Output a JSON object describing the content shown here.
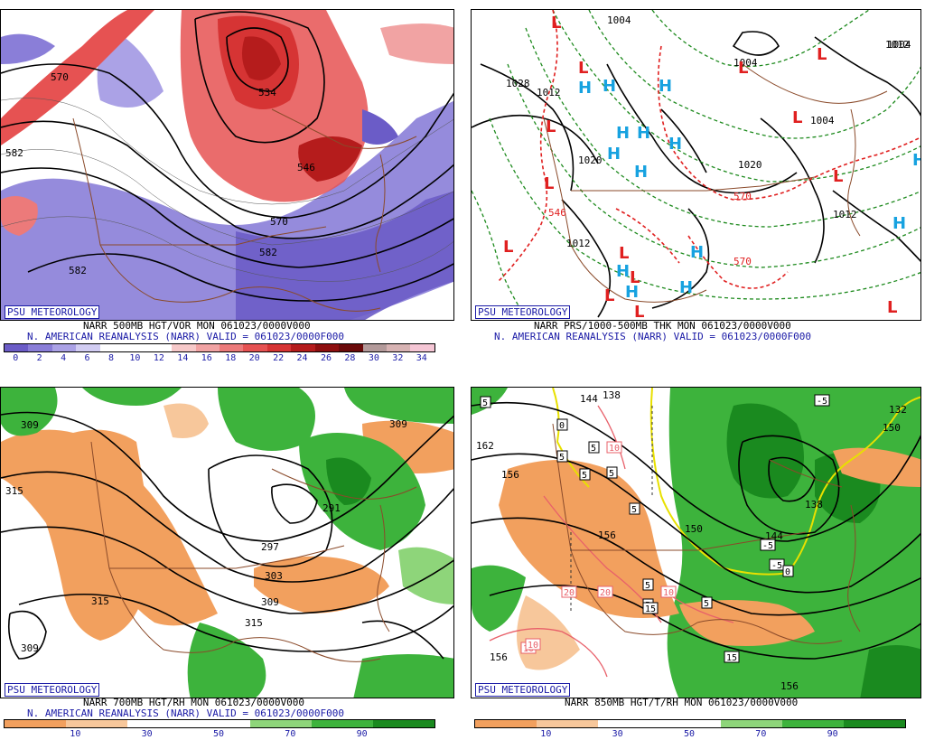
{
  "panels": {
    "p1": {
      "badge": "PSU METEOROLOGY",
      "line1": "NARR 500MB HGT/VOR MON 061023/0000V000",
      "line2": "N. AMERICAN REANALYSIS (NARR) VALID = 061023/0000F000",
      "ticks": [
        "0",
        "2",
        "4",
        "6",
        "8",
        "10",
        "12",
        "14",
        "16",
        "18",
        "20",
        "22",
        "24",
        "26",
        "28",
        "30",
        "32",
        "34"
      ],
      "colors": [
        "#6b5cc7",
        "#8a7ed8",
        "#aba2e6",
        "#d2cdf3",
        "#ffffff",
        "#ffffff",
        "#ffffff",
        "#f6c9c9",
        "#f1a3a3",
        "#ec7a7a",
        "#e65252",
        "#d63434",
        "#b51c1c",
        "#8e0f0f",
        "#6b0a0a",
        "#b39a9a",
        "#d7b3b3",
        "#f5c6d5"
      ],
      "contours": [
        "570",
        "534",
        "582",
        "546",
        "570",
        "582",
        "582"
      ]
    },
    "p2": {
      "badge": "PSU METEOROLOGY",
      "line1": "NARR PRS/1000-500MB THK MON 061023/0000V000",
      "line2": "N. AMERICAN REANALYSIS (NARR) VALID = 061023/0000F000",
      "contours": [
        "1004",
        "1028",
        "1012",
        "1020",
        "1020",
        "1004",
        "1012",
        "1012",
        "1004",
        "546",
        "570",
        "570",
        "1004",
        "1012"
      ],
      "highs": [
        "H",
        "H",
        "H",
        "H",
        "H",
        "H",
        "H",
        "H",
        "H",
        "H",
        "H",
        "H",
        "H",
        "H"
      ],
      "lows": [
        "L",
        "L",
        "L",
        "L",
        "L",
        "L",
        "L",
        "L",
        "L",
        "L",
        "L",
        "L",
        "L",
        "L"
      ]
    },
    "p3": {
      "badge": "PSU METEOROLOGY",
      "line1": "NARR 700MB HGT/RH MON 061023/0000V000",
      "line2": "N. AMERICAN REANALYSIS (NARR) VALID = 061023/0000F000",
      "ticks": [
        "10",
        "30",
        "50",
        "70",
        "90"
      ],
      "colors": [
        "#f2a05e",
        "#f7c79b",
        "#ffffff",
        "#ffffff",
        "#8ed57a",
        "#3db33c",
        "#1a8a1f"
      ],
      "contours": [
        "309",
        "315",
        "309",
        "291",
        "297",
        "303",
        "309",
        "315",
        "315",
        "309"
      ]
    },
    "p4": {
      "badge": "PSU METEOROLOGY",
      "line1": "NARR 850MB HGT/T/RH MON 061023/0000V000",
      "line2": "",
      "ticks": [
        "10",
        "30",
        "50",
        "70",
        "90"
      ],
      "colors": [
        "#f2a05e",
        "#f7c79b",
        "#ffffff",
        "#ffffff",
        "#8ed57a",
        "#3db33c",
        "#1a8a1f"
      ],
      "contours": [
        "144",
        "138",
        "132",
        "162",
        "156",
        "156",
        "150",
        "144",
        "138",
        "150",
        "156",
        "156"
      ],
      "boxes": [
        "5",
        "5",
        "5",
        "5",
        "5",
        "5",
        "5",
        "5",
        "5",
        "-5",
        "-5",
        "-5",
        "0",
        "0",
        "10",
        "10",
        "20",
        "20",
        "10",
        "15",
        "15",
        "10"
      ]
    }
  }
}
